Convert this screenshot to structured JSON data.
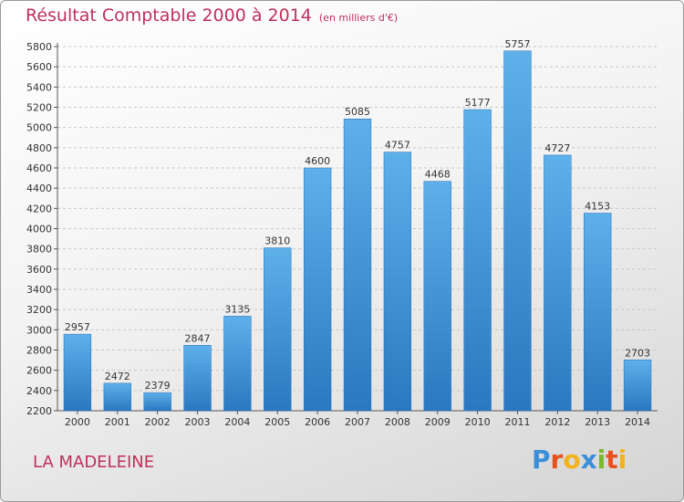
{
  "chart_data": {
    "type": "bar",
    "title": "Résultat Comptable 2000 à 2014",
    "subtitle": "(en milliers d'€)",
    "categories": [
      "2000",
      "2001",
      "2002",
      "2003",
      "2004",
      "2005",
      "2006",
      "2007",
      "2008",
      "2009",
      "2010",
      "2011",
      "2012",
      "2013",
      "2014"
    ],
    "values": [
      2957,
      2472,
      2379,
      2847,
      3135,
      3810,
      4600,
      5085,
      4757,
      4468,
      5177,
      5757,
      4727,
      4153,
      2703
    ],
    "ylim": [
      2200,
      5800
    ],
    "ytick_step": 200,
    "grid": true,
    "bar_color": "#3a8fd8"
  },
  "location": "LA MADELEINE",
  "brand": {
    "letters": [
      "P",
      "r",
      "o",
      "x",
      "i",
      "t",
      "i"
    ],
    "colors": [
      "#3a8fd8",
      "#e8501e",
      "#f2b31c",
      "#3a8fd8",
      "#7ab828",
      "#e8501e",
      "#f2b31c"
    ]
  }
}
